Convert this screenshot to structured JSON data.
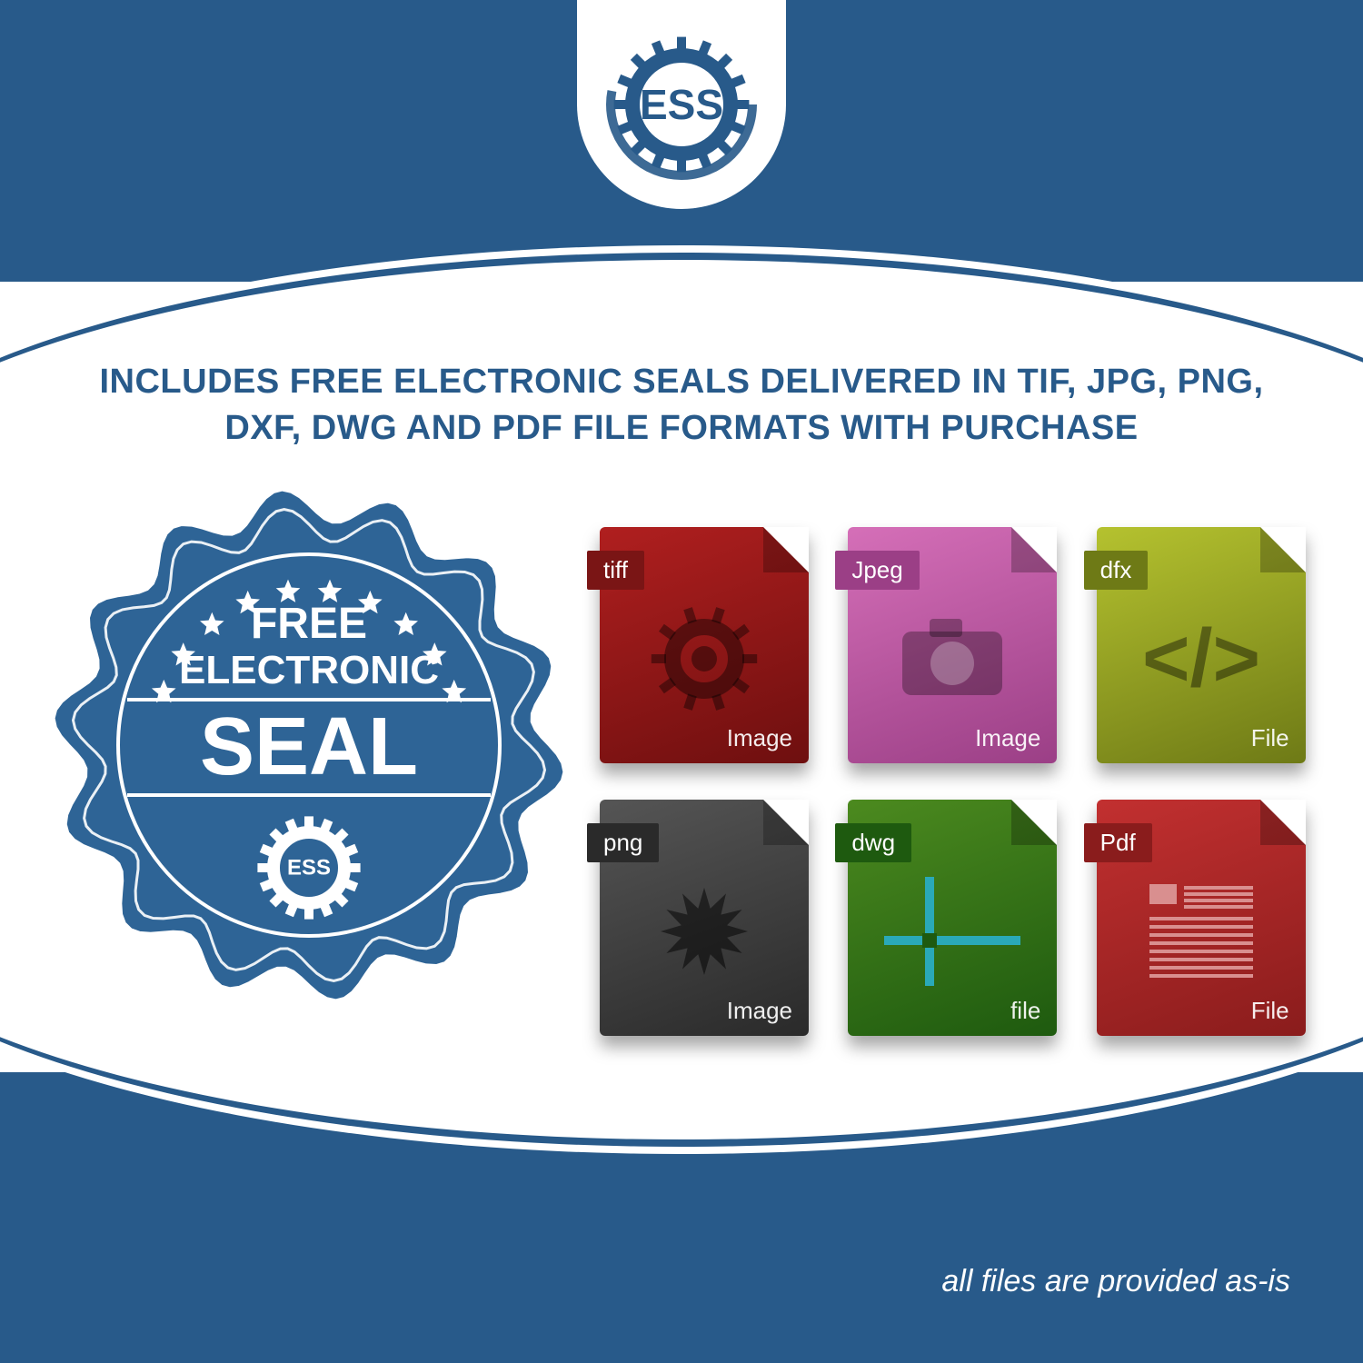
{
  "colors": {
    "brand_blue": "#285a8a",
    "white": "#ffffff"
  },
  "logo": {
    "text": "ESS",
    "gear_color": "#285a8a",
    "text_color": "#285a8a",
    "font_size": 46,
    "teeth": 16
  },
  "headline": {
    "text": "INCLUDES FREE ELECTRONIC SEALS DELIVERED IN TIF, JPG, PNG, DXF, DWG AND PDF FILE FORMATS WITH PURCHASE",
    "color": "#285a8a",
    "font_size": 38,
    "font_weight": 800
  },
  "seal": {
    "line1": "FREE",
    "line2": "ELECTRONIC",
    "line3": "SEAL",
    "inner_logo": "ESS",
    "bg_color": "#2e6496",
    "text_color": "#ffffff",
    "star_count": 10
  },
  "files": [
    {
      "tag": "tiff",
      "type": "Image",
      "bg": "linear-gradient(160deg,#b01f1f,#6e0f0f)",
      "tag_bg": "#7a1515",
      "glyph": "gear",
      "glyph_color": "rgba(0,0,0,0.4)"
    },
    {
      "tag": "Jpeg",
      "type": "Image",
      "bg": "linear-gradient(160deg,#d56fb8,#9b3f86)",
      "tag_bg": "#9b3f86",
      "glyph": "camera",
      "glyph_color": "rgba(0,0,0,0.3)"
    },
    {
      "tag": "dfx",
      "type": "File",
      "bg": "linear-gradient(160deg,#b5c22f,#6e7a16)",
      "tag_bg": "#6e7a16",
      "glyph": "code",
      "glyph_color": "rgba(0,0,0,0.4)"
    },
    {
      "tag": "png",
      "type": "Image",
      "bg": "linear-gradient(160deg,#555555,#2a2a2a)",
      "tag_bg": "#2a2a2a",
      "glyph": "burst",
      "glyph_color": "rgba(0,0,0,0.5)"
    },
    {
      "tag": "dwg",
      "type": "file",
      "bg": "linear-gradient(160deg,#4c8a1f,#1e5a0f)",
      "tag_bg": "#1e5a0f",
      "glyph": "grid",
      "glyph_color": "#2aa9b8"
    },
    {
      "tag": "Pdf",
      "type": "File",
      "bg": "linear-gradient(160deg,#c23030,#8a1c1c)",
      "tag_bg": "#8a1c1c",
      "glyph": "doc",
      "glyph_color": "#d98f8f"
    }
  ],
  "disclaimer": {
    "text": "all files are provided as-is",
    "color": "#ffffff",
    "font_size": 34
  }
}
